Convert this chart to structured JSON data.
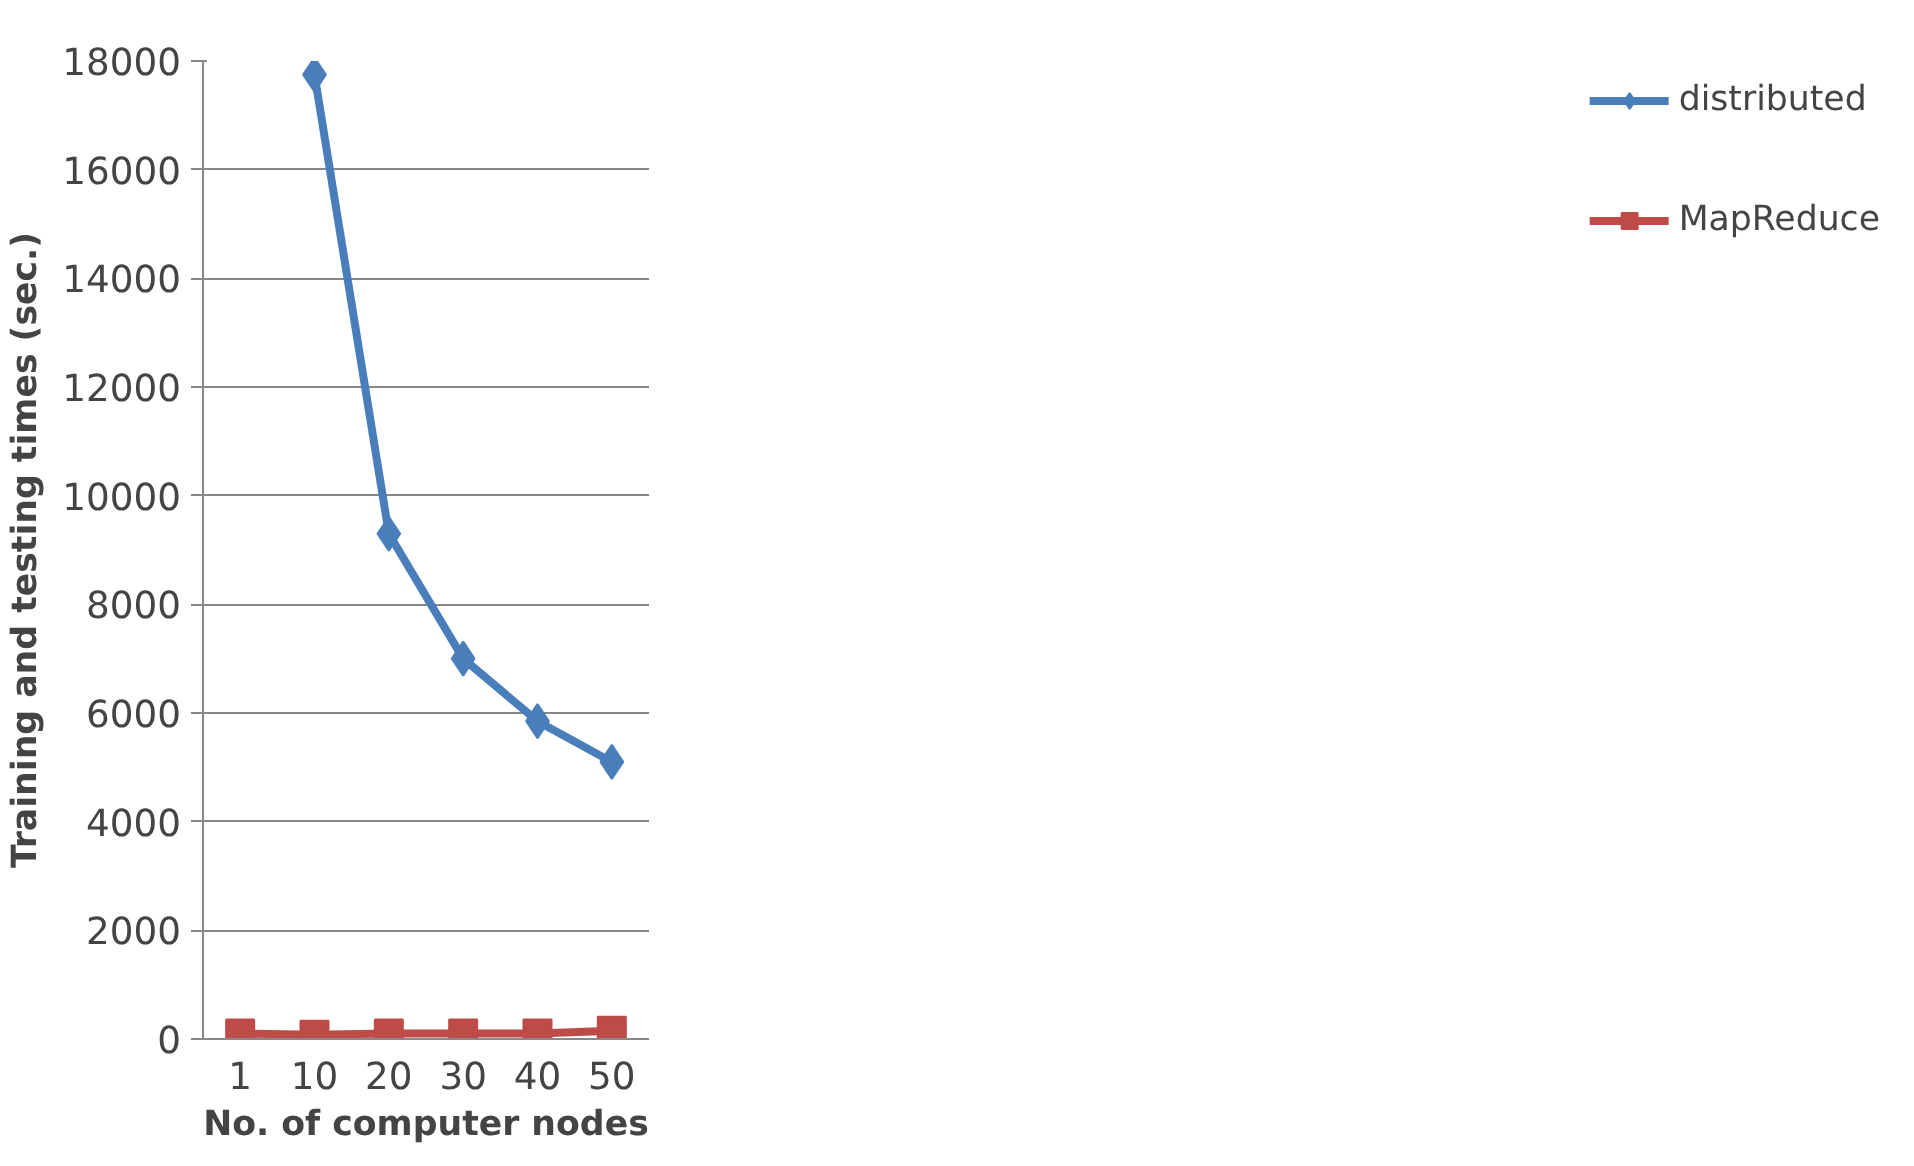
{
  "chart_data": {
    "type": "line",
    "xlabel": "No. of computer nodes",
    "ylabel": "Training and testing times (sec.)",
    "categories": [
      "1",
      "10",
      "20",
      "30",
      "40",
      "50"
    ],
    "series": [
      {
        "name": "distributed",
        "color": "#4a7ebb",
        "marker": "diamond",
        "values": [
          null,
          17750,
          9300,
          7000,
          5850,
          5100
        ]
      },
      {
        "name": "MapReduce",
        "color": "#be4b48",
        "marker": "square",
        "values": [
          100,
          80,
          100,
          100,
          100,
          150
        ]
      }
    ],
    "ylim": [
      0,
      18000
    ],
    "yticks": [
      0,
      2000,
      4000,
      6000,
      8000,
      10000,
      12000,
      14000,
      16000,
      18000
    ],
    "grid": "y",
    "legend": "right"
  }
}
